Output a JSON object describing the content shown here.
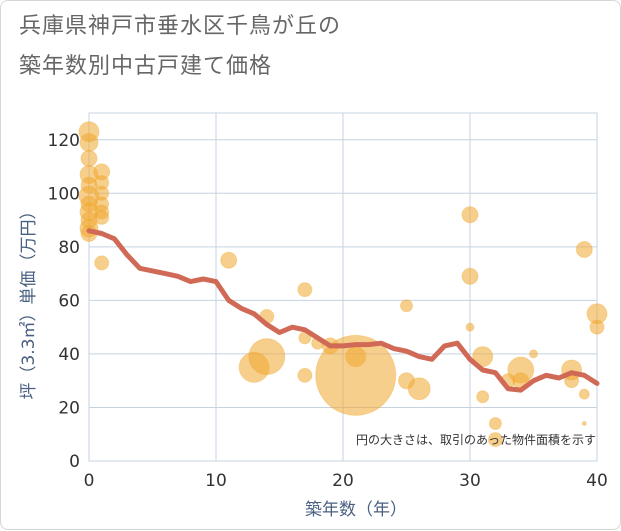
{
  "header": {
    "title_line1": "兵庫県神戸市垂水区千鳥が丘の",
    "title_line2": "築年数別中古戸建て価格"
  },
  "chart_data": {
    "type": "scatter",
    "title": "兵庫県神戸市垂水区千鳥が丘の築年数別中古戸建て価格",
    "xlabel": "築年数（年）",
    "ylabel": "坪（3.3㎡）単価（万円）",
    "xlim": [
      0,
      40
    ],
    "ylim": [
      0,
      130
    ],
    "x_ticks": [
      0,
      10,
      20,
      30,
      40
    ],
    "y_ticks": [
      0,
      20,
      40,
      60,
      80,
      100,
      120
    ],
    "grid": true,
    "note": "円の大きさは、取引のあった物件面積を示す",
    "colors": {
      "bubble": "#f0a830",
      "line": "#d06a56",
      "grid": "#c5d3e0",
      "axis_text": "#4a6080"
    },
    "series": [
      {
        "kind": "bubble",
        "points": [
          {
            "x": 0,
            "y": 123,
            "size": 10
          },
          {
            "x": 0,
            "y": 119,
            "size": 9
          },
          {
            "x": 0,
            "y": 113,
            "size": 8
          },
          {
            "x": 0,
            "y": 107,
            "size": 9
          },
          {
            "x": 0,
            "y": 103,
            "size": 8
          },
          {
            "x": 0,
            "y": 99,
            "size": 10
          },
          {
            "x": 0,
            "y": 96,
            "size": 8
          },
          {
            "x": 0,
            "y": 93,
            "size": 9
          },
          {
            "x": 0,
            "y": 90,
            "size": 8
          },
          {
            "x": 0,
            "y": 87,
            "size": 9
          },
          {
            "x": 0,
            "y": 85,
            "size": 8
          },
          {
            "x": 1,
            "y": 108,
            "size": 8
          },
          {
            "x": 1,
            "y": 104,
            "size": 7
          },
          {
            "x": 1,
            "y": 100,
            "size": 7
          },
          {
            "x": 1,
            "y": 96,
            "size": 7
          },
          {
            "x": 1,
            "y": 93,
            "size": 7
          },
          {
            "x": 1,
            "y": 91,
            "size": 7
          },
          {
            "x": 1,
            "y": 74,
            "size": 7
          },
          {
            "x": 11,
            "y": 75,
            "size": 8
          },
          {
            "x": 13,
            "y": 35,
            "size": 15
          },
          {
            "x": 14,
            "y": 54,
            "size": 7
          },
          {
            "x": 14,
            "y": 39,
            "size": 18
          },
          {
            "x": 17,
            "y": 64,
            "size": 7
          },
          {
            "x": 17,
            "y": 46,
            "size": 6
          },
          {
            "x": 17,
            "y": 32,
            "size": 7
          },
          {
            "x": 18,
            "y": 44,
            "size": 6
          },
          {
            "x": 19,
            "y": 43,
            "size": 8
          },
          {
            "x": 21,
            "y": 32,
            "size": 40
          },
          {
            "x": 21,
            "y": 39,
            "size": 10
          },
          {
            "x": 25,
            "y": 58,
            "size": 6
          },
          {
            "x": 25,
            "y": 30,
            "size": 8
          },
          {
            "x": 26,
            "y": 27,
            "size": 11
          },
          {
            "x": 30,
            "y": 92,
            "size": 8
          },
          {
            "x": 30,
            "y": 69,
            "size": 8
          },
          {
            "x": 30,
            "y": 50,
            "size": 4
          },
          {
            "x": 31,
            "y": 39,
            "size": 10
          },
          {
            "x": 31,
            "y": 24,
            "size": 6
          },
          {
            "x": 32,
            "y": 14,
            "size": 6
          },
          {
            "x": 32,
            "y": 8,
            "size": 7
          },
          {
            "x": 33,
            "y": 30,
            "size": 7
          },
          {
            "x": 34,
            "y": 34,
            "size": 13
          },
          {
            "x": 34,
            "y": 30,
            "size": 8
          },
          {
            "x": 35,
            "y": 40,
            "size": 4
          },
          {
            "x": 38,
            "y": 34,
            "size": 10
          },
          {
            "x": 38,
            "y": 30,
            "size": 7
          },
          {
            "x": 39,
            "y": 79,
            "size": 8
          },
          {
            "x": 39,
            "y": 25,
            "size": 5
          },
          {
            "x": 39,
            "y": 14,
            "size": 2
          },
          {
            "x": 40,
            "y": 55,
            "size": 10
          },
          {
            "x": 40,
            "y": 50,
            "size": 7
          }
        ]
      },
      {
        "kind": "line",
        "x": [
          0,
          1,
          2,
          3,
          4,
          5,
          6,
          7,
          8,
          9,
          10,
          11,
          12,
          13,
          14,
          15,
          16,
          17,
          18,
          19,
          20,
          21,
          22,
          23,
          24,
          25,
          26,
          27,
          28,
          29,
          30,
          31,
          32,
          33,
          34,
          35,
          36,
          37,
          38,
          39,
          40
        ],
        "y": [
          86,
          85,
          83,
          77,
          72,
          71,
          70,
          69,
          67,
          68,
          67,
          60,
          57,
          55,
          51,
          48,
          50,
          49,
          46,
          43,
          43,
          43.5,
          43.5,
          44,
          42,
          41,
          39,
          38,
          43,
          44,
          38,
          34,
          33,
          27,
          26.5,
          30,
          32,
          31,
          33,
          32,
          29
        ]
      }
    ]
  }
}
